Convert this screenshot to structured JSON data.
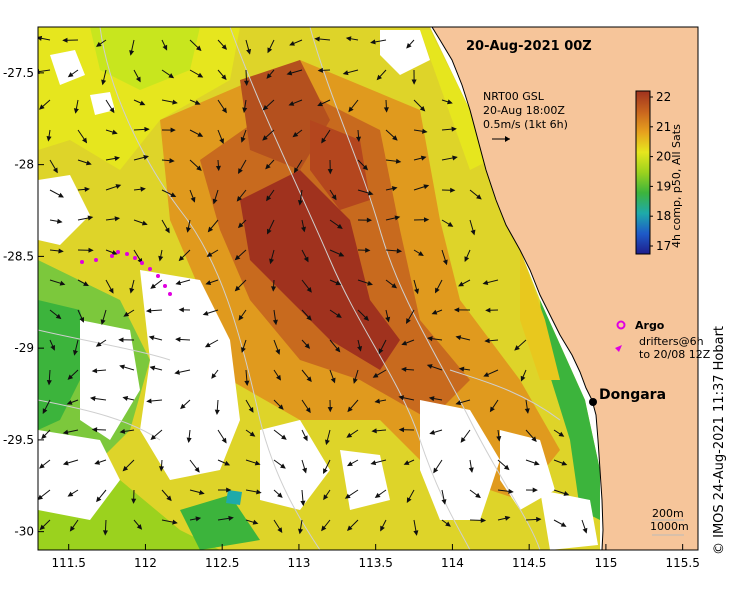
{
  "title": "20-Aug-2021 00Z",
  "current_legend": {
    "line1": "NRT00 GSL",
    "line2": "20-Aug 18:00Z",
    "line3": "0.5m/s (1kt 6h)"
  },
  "colorbar": {
    "label": "4h comp, p50, All Sats",
    "ticks": [
      "22",
      "21",
      "20",
      "19",
      "18",
      "17"
    ],
    "colors": [
      "#a0321e",
      "#c8641e",
      "#e6a01e",
      "#e6e61e",
      "#9bd21e",
      "#3cb43c",
      "#1eaaaa",
      "#1e5ac8",
      "#1e1e8c"
    ]
  },
  "legend": {
    "argo_label": "Argo",
    "drifters_line1": "drifters@6h",
    "drifters_line2": "to 20/08 12Z",
    "argo_color": "#e000e0"
  },
  "place": {
    "name": "Dongara"
  },
  "contour_legend": {
    "line1": "200m",
    "line2": "1000m"
  },
  "credit": "© IMOS 24-Aug-2021 11:37 Hobart",
  "x_axis": {
    "range": [
      111.3,
      115.6
    ],
    "ticks": [
      "111.5",
      "112",
      "112.5",
      "113",
      "113.5",
      "114",
      "114.5",
      "115",
      "115.5"
    ]
  },
  "y_axis": {
    "range": [
      -27.25,
      -30.1
    ],
    "ticks": [
      "-27.5",
      "-28",
      "-28.5",
      "-29",
      "-29.5",
      "-30"
    ]
  }
}
